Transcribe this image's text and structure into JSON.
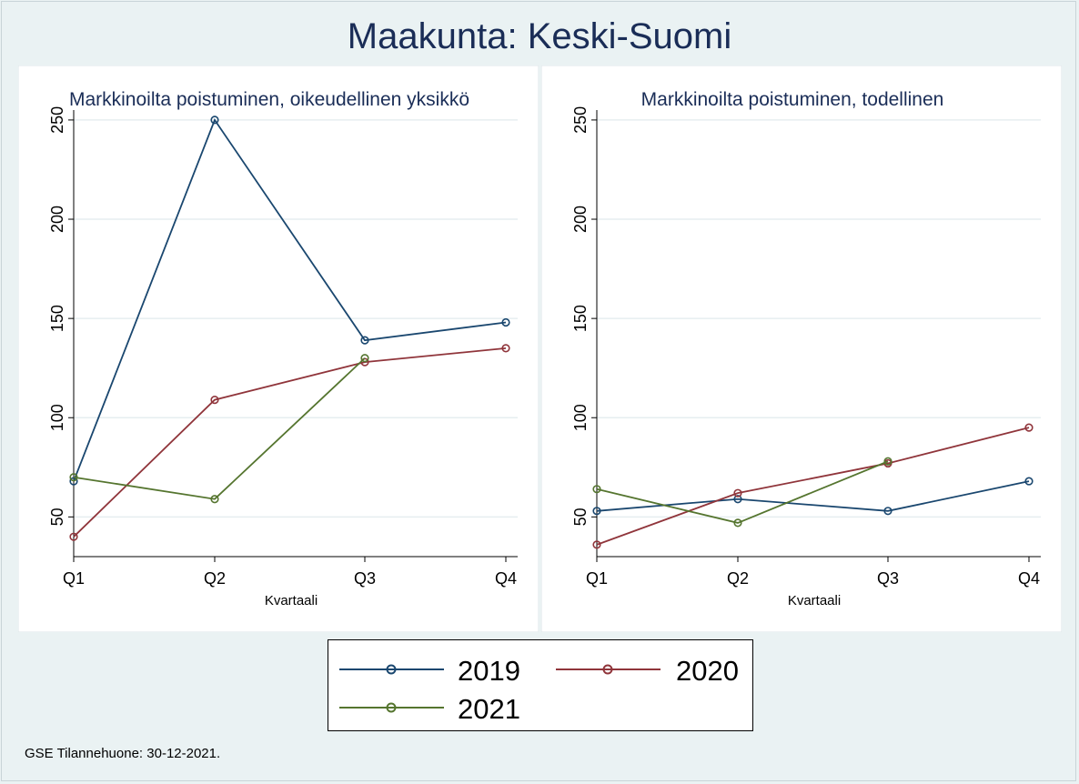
{
  "title": "Maakunta: Keski-Suomi",
  "footnote": "GSE Tilannehuone: 30-12-2021.",
  "colors": {
    "2019": "#1a476f",
    "2020": "#90353b",
    "2021": "#55752f"
  },
  "legend": [
    {
      "name": "2019",
      "color": "#1a476f"
    },
    {
      "name": "2020",
      "color": "#90353b"
    },
    {
      "name": "2021",
      "color": "#55752f"
    }
  ],
  "chart_data": [
    {
      "type": "line",
      "title": "Markkinoilta poistuminen, oikeudellinen yksikkö",
      "xlabel": "Kvartaali",
      "ylabel": "",
      "categories": [
        "Q1",
        "Q2",
        "Q3",
        "Q4"
      ],
      "yticks": [
        50,
        100,
        150,
        200,
        250
      ],
      "ylim": [
        30,
        255
      ],
      "grid": true,
      "series": [
        {
          "name": "2019",
          "values": [
            68,
            250,
            139,
            148
          ]
        },
        {
          "name": "2020",
          "values": [
            40,
            109,
            128,
            135
          ]
        },
        {
          "name": "2021",
          "values": [
            70,
            59,
            130,
            null
          ]
        }
      ]
    },
    {
      "type": "line",
      "title": "Markkinoilta poistuminen, todellinen",
      "xlabel": "Kvartaali",
      "ylabel": "",
      "categories": [
        "Q1",
        "Q2",
        "Q3",
        "Q4"
      ],
      "yticks": [
        50,
        100,
        150,
        200,
        250
      ],
      "ylim": [
        30,
        255
      ],
      "grid": true,
      "series": [
        {
          "name": "2019",
          "values": [
            53,
            59,
            53,
            68
          ]
        },
        {
          "name": "2020",
          "values": [
            36,
            62,
            77,
            95
          ]
        },
        {
          "name": "2021",
          "values": [
            64,
            47,
            78,
            null
          ]
        }
      ]
    }
  ]
}
